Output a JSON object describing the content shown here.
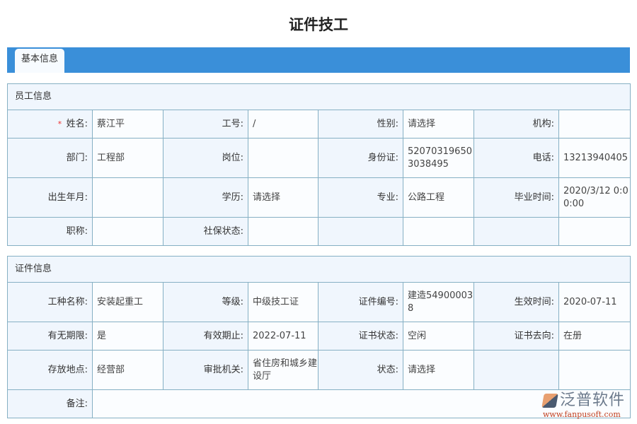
{
  "title": "证件技工",
  "tab": "基本信息",
  "employee": {
    "header": "员工信息",
    "rows": [
      [
        [
          "* ",
          "姓名:",
          "蔡江平"
        ],
        [
          "",
          "工号:",
          "/"
        ],
        [
          "",
          "性别:",
          "请选择"
        ],
        [
          "",
          "机构:",
          ""
        ]
      ],
      [
        [
          "",
          "部门:",
          "工程部"
        ],
        [
          "",
          "岗位:",
          ""
        ],
        [
          "",
          "身份证:",
          "520703196503038495"
        ],
        [
          "",
          "电话:",
          "13213940405"
        ]
      ],
      [
        [
          "",
          "出生年月:",
          ""
        ],
        [
          "",
          "学历:",
          "请选择"
        ],
        [
          "",
          "专业:",
          "公路工程"
        ],
        [
          "",
          "毕业时间:",
          "2020/3/12 0:00:00"
        ]
      ],
      [
        [
          "",
          "职称:",
          ""
        ],
        [
          "",
          "社保状态:",
          ""
        ],
        [
          "",
          "",
          ""
        ],
        [
          "",
          "",
          ""
        ]
      ]
    ]
  },
  "cert": {
    "header": "证件信息",
    "rows": [
      [
        [
          "",
          "工种名称:",
          "安装起重工"
        ],
        [
          "",
          "等级:",
          "中级技工证"
        ],
        [
          "",
          "证件编号:",
          "建造549000038"
        ],
        [
          "",
          "生效时间:",
          "2020-07-11"
        ]
      ],
      [
        [
          "",
          "有无期限:",
          "是"
        ],
        [
          "",
          "有效期止:",
          "2022-07-11"
        ],
        [
          "",
          "证书状态:",
          "空闲"
        ],
        [
          "",
          "证书去向:",
          "在册"
        ]
      ],
      [
        [
          "",
          "存放地点:",
          "经营部"
        ],
        [
          "",
          "审批机关:",
          "省住房和城乡建设厅"
        ],
        [
          "",
          "状态:",
          "请选择"
        ],
        [
          "",
          "",
          ""
        ]
      ]
    ],
    "remark_label": "备注:",
    "remark_value": ""
  },
  "logo": {
    "name": "泛普软件",
    "url": "www.fanpusoft.com"
  }
}
